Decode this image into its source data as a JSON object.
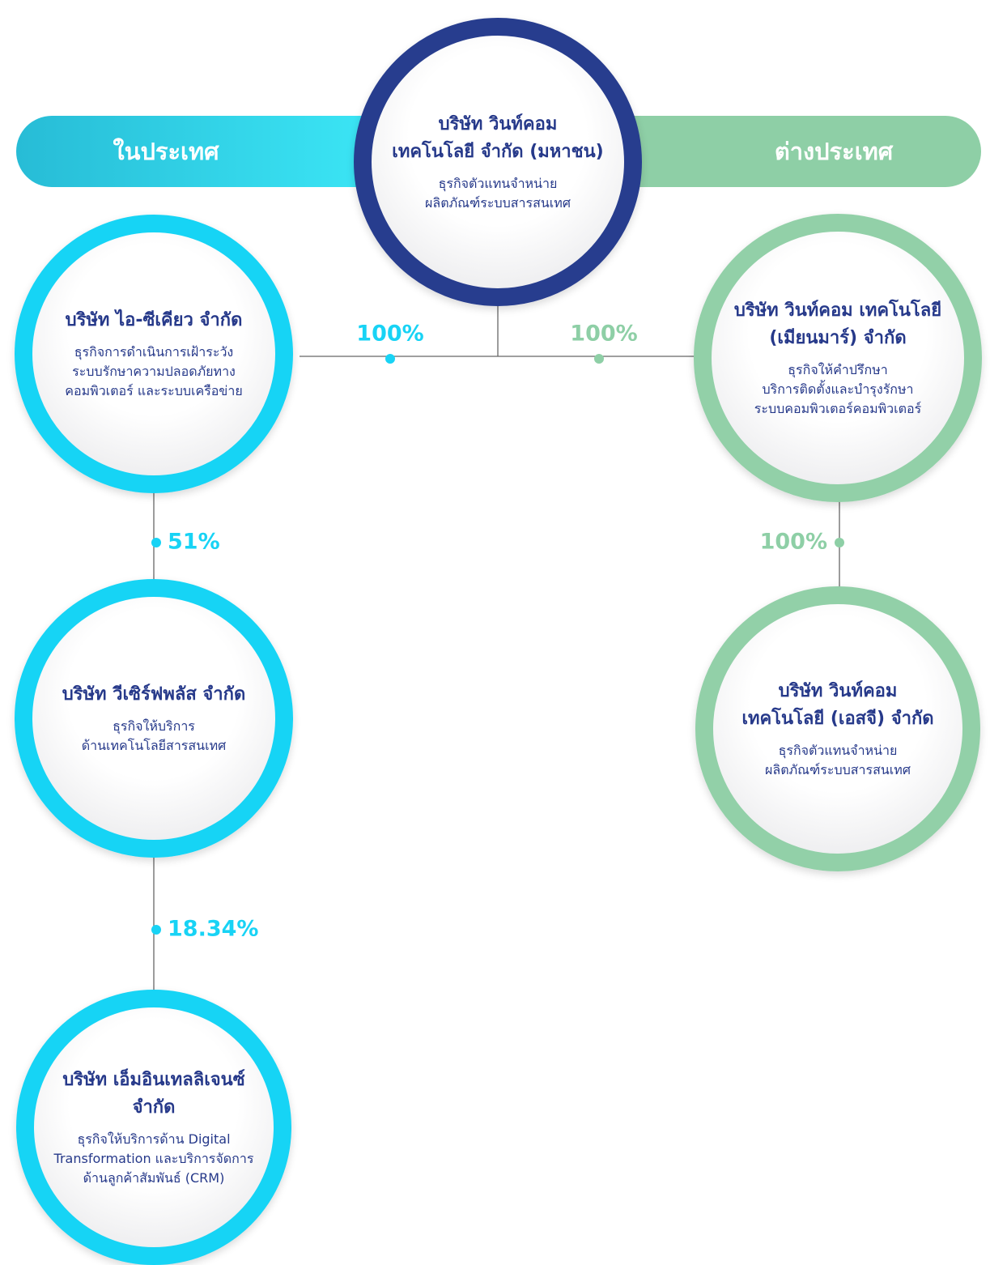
{
  "sections": {
    "domestic": "ในประเทศ",
    "overseas": "ต่างประเทศ"
  },
  "nodes": [
    {
      "title": [
        "บริษัท วินท์คอม",
        "เทคโนโลยี จำกัด (มหาชน)"
      ],
      "description": [
        "ธุรกิจตัวแทนจำหน่าย",
        "ผลิตภัณฑ์ระบบสารสนเทศ"
      ]
    },
    {
      "title": [
        "บริษัท ไอ-ซีเคียว จำกัด"
      ],
      "description": [
        "ธุรกิจการดำเนินการเฝ้าระวัง",
        "ระบบรักษาความปลอดภัยทาง",
        "คอมพิวเตอร์ และระบบเครือข่าย"
      ]
    },
    {
      "title": [
        "บริษัท วีเซิร์ฟพลัส จำกัด"
      ],
      "description": [
        "ธุรกิจให้บริการ",
        "ด้านเทคโนโลยีสารสนเทศ"
      ]
    },
    {
      "title": [
        "บริษัท เอ็มอินเทลลิเจนซ์",
        "จำกัด"
      ],
      "description": [
        "ธุรกิจให้บริการด้าน Digital",
        "Transformation และบริการจัดการ",
        "ด้านลูกค้าสัมพันธ์ (CRM)"
      ]
    },
    {
      "title": [
        "บริษัท วินท์คอม เทคโนโลยี",
        "(เมียนมาร์) จำกัด"
      ],
      "description": [
        "ธุรกิจให้คำปรึกษา",
        "บริการติดตั้งและบำรุงรักษา",
        "ระบบคอมพิวเตอร์คอมพิวเตอร์"
      ]
    },
    {
      "title": [
        "บริษัท วินท์คอม",
        "เทคโนโลยี (เอสจี) จำกัด"
      ],
      "description": [
        "ธุรกิจตัวแทนจำหน่าย",
        "ผลิตภัณฑ์ระบบสารสนเทศ"
      ]
    }
  ],
  "ownership": [
    "100%",
    "51%",
    "18.34%",
    "100%",
    "100%"
  ]
}
